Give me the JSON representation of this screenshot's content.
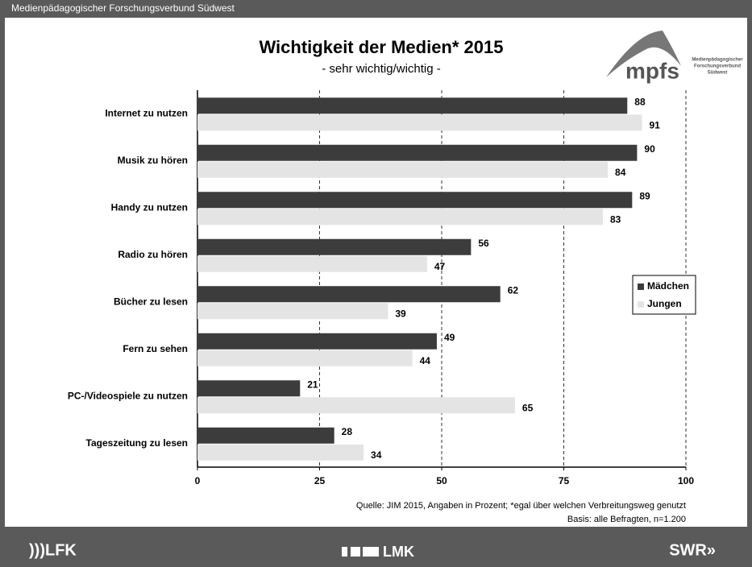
{
  "header": {
    "text": "Medienpädagogischer Forschungsverbund Südwest"
  },
  "logo": {
    "name": "mpfs",
    "lines": [
      "Medienpädagogischer",
      "Forschungsverbund",
      "Südwest"
    ]
  },
  "footer": {
    "left": ")))LFK",
    "center": "LMK",
    "right": "SWR»"
  },
  "chart_data": {
    "type": "hbar",
    "title": "Wichtigkeit der Medien* 2015",
    "subtitle": "- sehr wichtig/wichtig -",
    "categories": [
      "Internet zu nutzen",
      "Musik zu hören",
      "Handy zu nutzen",
      "Radio zu hören",
      "Bücher zu lesen",
      "Fern zu sehen",
      "PC-/Videospiele zu nutzen",
      "Tageszeitung zu lesen"
    ],
    "series": [
      {
        "name": "Mädchen",
        "color": "#3c3c3c",
        "values": [
          88,
          90,
          89,
          56,
          62,
          49,
          21,
          28
        ]
      },
      {
        "name": "Jungen",
        "color": "#e4e4e4",
        "values": [
          91,
          84,
          83,
          47,
          39,
          44,
          65,
          34
        ]
      }
    ],
    "xlim": [
      0,
      100
    ],
    "xticks": [
      0,
      25,
      50,
      75,
      100
    ],
    "grid": true,
    "legend": "right",
    "notes": [
      "Quelle: JIM 2015, Angaben in Prozent; *egal über welchen Verbreitungsweg genutzt",
      "Basis: alle Befragten, n=1.200"
    ]
  }
}
